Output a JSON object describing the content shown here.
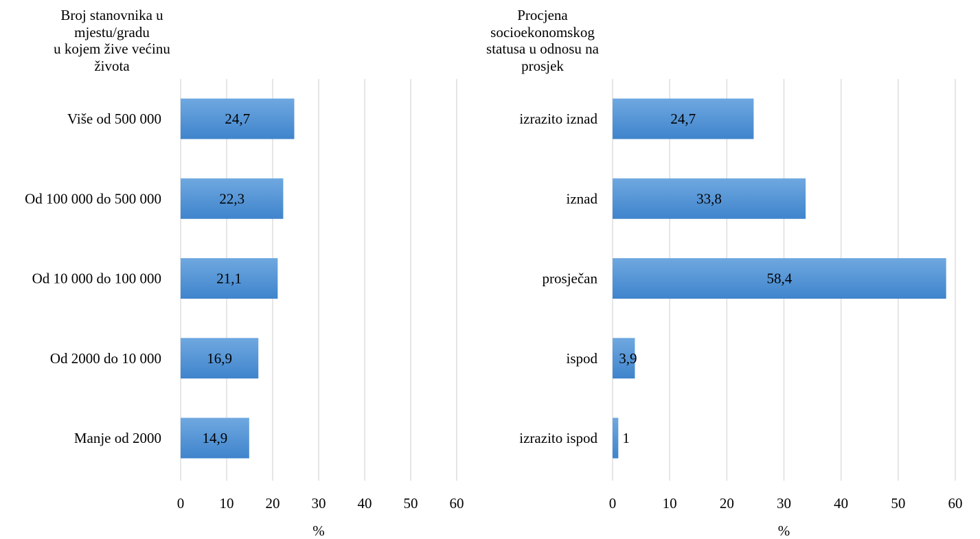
{
  "colors": {
    "bar_light": "#6FA8E0",
    "bar_dark": "#3F84CC",
    "gridline": "#D9D9D9",
    "text": "#000000"
  },
  "chart_data": [
    {
      "type": "bar",
      "orientation": "horizontal",
      "title_lines": [
        "Broj stanovnika u",
        "mjestu/gradu",
        "u kojem žive većinu",
        "života"
      ],
      "categories": [
        "Više od 500 000",
        "Od 100 000 do 500 000",
        "Od 10 000 do 100 000",
        "Od 2000 do 10 000",
        "Manje od 2000"
      ],
      "values": [
        24.7,
        22.3,
        21.1,
        16.9,
        14.9
      ],
      "value_labels": [
        "24,7",
        "22,3",
        "21,1",
        "16,9",
        "14,9"
      ],
      "xlabel": "%",
      "xlim": [
        0,
        60
      ],
      "xticks": [
        0,
        10,
        20,
        30,
        40,
        50,
        60
      ],
      "grid": true,
      "legend": "none"
    },
    {
      "type": "bar",
      "orientation": "horizontal",
      "title_lines": [
        "Procjena",
        "socioekonomskog",
        "statusa u odnosu na",
        "prosjek"
      ],
      "categories": [
        "izrazito iznad",
        "iznad",
        "prosječan",
        "ispod",
        "izrazito ispod"
      ],
      "values": [
        24.7,
        33.8,
        58.4,
        3.9,
        1
      ],
      "value_labels": [
        "24,7",
        "33,8",
        "58,4",
        "3,9",
        "1"
      ],
      "xlabel": "%",
      "xlim": [
        0,
        60
      ],
      "xticks": [
        0,
        10,
        20,
        30,
        40,
        50,
        60
      ],
      "grid": true,
      "legend": "none"
    }
  ]
}
